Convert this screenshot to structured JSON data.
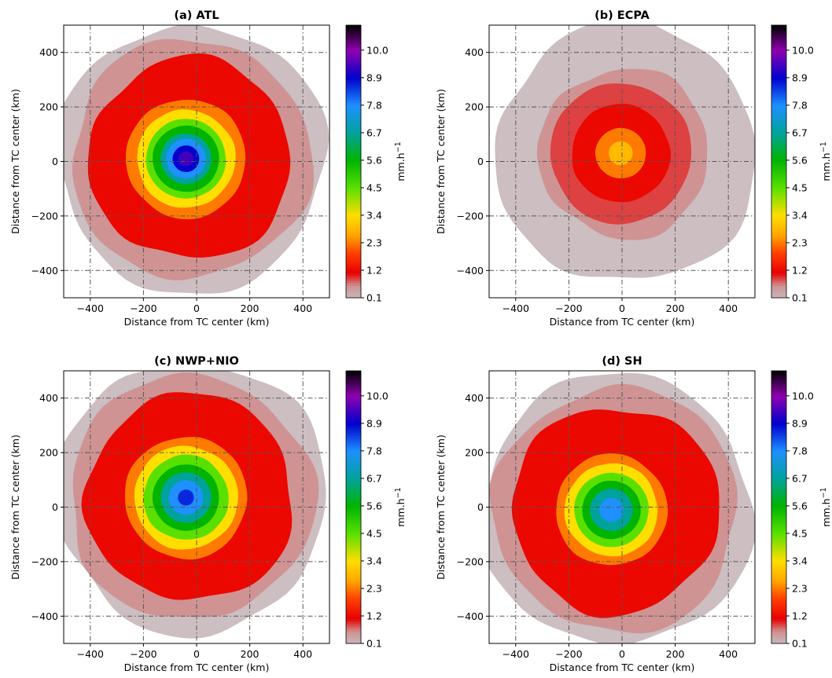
{
  "chart_data": [
    {
      "type": "heatmap",
      "panel": "a",
      "title": "(a) ATL",
      "xlabel": "Distance from TC center (km)",
      "ylabel": "Distance from TC center (km)",
      "xlim": [
        -500,
        500
      ],
      "ylim": [
        -500,
        500
      ],
      "xticks": [
        -400,
        -200,
        0,
        200,
        400
      ],
      "yticks": [
        -400,
        -200,
        0,
        200,
        400
      ],
      "grid": true,
      "center_offset_km": [
        -40,
        10
      ],
      "max_rain_mm_h": 9.5,
      "contours": [
        {
          "level": 0.1,
          "radius_km": 505
        },
        {
          "level": 0.6,
          "radius_km": 450
        },
        {
          "level": 1.2,
          "radius_km": 380
        },
        {
          "level": 2.3,
          "radius_km": 225
        },
        {
          "level": 3.4,
          "radius_km": 185
        },
        {
          "level": 4.5,
          "radius_km": 150
        },
        {
          "level": 5.6,
          "radius_km": 125
        },
        {
          "level": 6.7,
          "radius_km": 95
        },
        {
          "level": 7.8,
          "radius_km": 75
        },
        {
          "level": 8.9,
          "radius_km": 50
        },
        {
          "level": 9.4,
          "radius_km": 28
        }
      ]
    },
    {
      "type": "heatmap",
      "panel": "b",
      "title": "(b) ECPA",
      "xlabel": "Distance from TC center (km)",
      "ylabel": "Distance from TC center (km)",
      "xlim": [
        -500,
        500
      ],
      "ylim": [
        -500,
        500
      ],
      "xticks": [
        -400,
        -200,
        0,
        200,
        400
      ],
      "yticks": [
        -400,
        -200,
        0,
        200,
        400
      ],
      "grid": true,
      "center_offset_km": [
        -5,
        30
      ],
      "max_rain_mm_h": 3.0,
      "contours": [
        {
          "level": 0.1,
          "radius_km": 490
        },
        {
          "level": 0.6,
          "radius_km": 320
        },
        {
          "level": 0.9,
          "radius_km": 265
        },
        {
          "level": 1.2,
          "radius_km": 185
        },
        {
          "level": 2.3,
          "radius_km": 95
        },
        {
          "level": 2.9,
          "radius_km": 45
        }
      ]
    },
    {
      "type": "heatmap",
      "panel": "c",
      "title": "(c) NWP+NIO",
      "xlabel": "Distance from TC center (km)",
      "ylabel": "Distance from TC center (km)",
      "xlim": [
        -500,
        500
      ],
      "ylim": [
        -500,
        500
      ],
      "xticks": [
        -400,
        -200,
        0,
        200,
        400
      ],
      "yticks": [
        -400,
        -200,
        0,
        200,
        400
      ],
      "grid": true,
      "center_offset_km": [
        -40,
        35
      ],
      "max_rain_mm_h": 8.9,
      "contours": [
        {
          "level": 0.1,
          "radius_km": 510
        },
        {
          "level": 0.6,
          "radius_km": 460
        },
        {
          "level": 1.2,
          "radius_km": 390
        },
        {
          "level": 2.3,
          "radius_km": 230
        },
        {
          "level": 3.4,
          "radius_km": 195
        },
        {
          "level": 4.5,
          "radius_km": 160
        },
        {
          "level": 5.6,
          "radius_km": 125
        },
        {
          "level": 6.7,
          "radius_km": 95
        },
        {
          "level": 7.8,
          "radius_km": 65
        },
        {
          "level": 8.6,
          "radius_km": 30
        }
      ]
    },
    {
      "type": "heatmap",
      "panel": "d",
      "title": "(d) SH",
      "xlabel": "Distance from TC center (km)",
      "ylabel": "Distance from TC center (km)",
      "xlim": [
        -500,
        500
      ],
      "ylim": [
        -500,
        500
      ],
      "xticks": [
        -400,
        -200,
        0,
        200,
        400
      ],
      "yticks": [
        -400,
        -200,
        0,
        200,
        400
      ],
      "grid": true,
      "center_offset_km": [
        -40,
        -10
      ],
      "max_rain_mm_h": 8.0,
      "contours": [
        {
          "level": 0.1,
          "radius_km": 510
        },
        {
          "level": 0.6,
          "radius_km": 460
        },
        {
          "level": 1.2,
          "radius_km": 390
        },
        {
          "level": 2.3,
          "radius_km": 210
        },
        {
          "level": 3.4,
          "radius_km": 175
        },
        {
          "level": 4.5,
          "radius_km": 140
        },
        {
          "level": 5.6,
          "radius_km": 110
        },
        {
          "level": 6.7,
          "radius_km": 80
        },
        {
          "level": 7.8,
          "radius_km": 45
        }
      ]
    }
  ],
  "colorbar": {
    "label": "mm.h$^{-1}$",
    "label_text": "mm.h",
    "label_sup": "−1",
    "tick_values": [
      0.1,
      1.2,
      2.3,
      3.4,
      4.5,
      5.6,
      6.7,
      7.8,
      8.9,
      10.0
    ],
    "tick_labels": [
      "0.1",
      "1.2",
      "2.3",
      "3.4",
      "4.5",
      "5.6",
      "6.7",
      "7.8",
      "8.9",
      "10.0"
    ],
    "range": [
      0.1,
      11.0
    ],
    "colors": [
      {
        "value": 0.1,
        "color": "#c8b8bc"
      },
      {
        "value": 0.6,
        "color": "#cf8f8f"
      },
      {
        "value": 1.1,
        "color": "#e80000"
      },
      {
        "value": 1.9,
        "color": "#ff4000"
      },
      {
        "value": 2.6,
        "color": "#ffa500"
      },
      {
        "value": 3.4,
        "color": "#ffde00"
      },
      {
        "value": 4.5,
        "color": "#5ae000"
      },
      {
        "value": 5.6,
        "color": "#00b400"
      },
      {
        "value": 6.7,
        "color": "#00a39b"
      },
      {
        "value": 7.8,
        "color": "#1e90ff"
      },
      {
        "value": 8.9,
        "color": "#0000cd"
      },
      {
        "value": 10.0,
        "color": "#9000b0"
      },
      {
        "value": 11.0,
        "color": "#000000"
      }
    ]
  },
  "tick_labels": {
    "x": [
      "−400",
      "−200",
      "0",
      "200",
      "400"
    ],
    "y": [
      "400",
      "200",
      "0",
      "−200",
      "−400"
    ]
  }
}
